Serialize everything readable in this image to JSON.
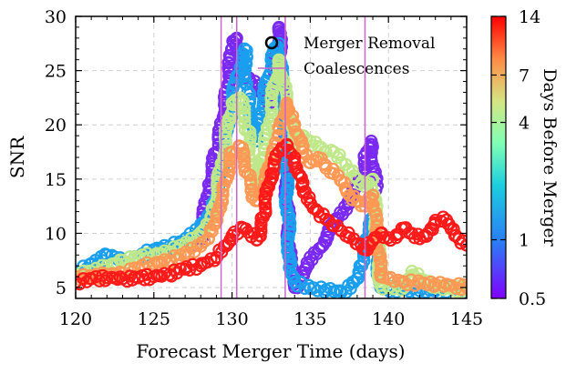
{
  "chart_data": {
    "type": "scatter",
    "xlabel": "Forecast Merger Time (days)",
    "ylabel": "SNR",
    "xlim": [
      120,
      145
    ],
    "ylim": [
      4,
      30
    ],
    "xticks": [
      "120",
      "125",
      "130",
      "135",
      "140",
      "145"
    ],
    "yticks": [
      "5",
      "10",
      "15",
      "20",
      "25",
      "30"
    ],
    "grid": true,
    "legend": {
      "placement": "top-right",
      "entries": [
        {
          "label": "Merger Removal",
          "marker": "open-circle"
        },
        {
          "label": "Coalescences",
          "marker": "vertical-line"
        }
      ]
    },
    "colorbar": {
      "label": "Days Before Merger",
      "colormap": "rainbow",
      "scale": "log",
      "range": [
        0.5,
        14
      ],
      "ticks": [
        "0.5",
        "1",
        "4",
        "7",
        "14"
      ]
    },
    "coalescences": [
      129.3,
      130.3,
      133.4,
      138.5
    ],
    "series": [
      {
        "days_before": 14,
        "color": "#ff1a1a",
        "points": [
          [
            120,
            5.5
          ],
          [
            121,
            5.8
          ],
          [
            122,
            5.9
          ],
          [
            123,
            5.8
          ],
          [
            124,
            5.9
          ],
          [
            125,
            6.0
          ],
          [
            126,
            6.2
          ],
          [
            127,
            6.7
          ],
          [
            128,
            7.0
          ],
          [
            129,
            7.8
          ],
          [
            130,
            9.8
          ],
          [
            130.7,
            10.5
          ],
          [
            131,
            10.1
          ],
          [
            131.6,
            9.4
          ],
          [
            132,
            11.5
          ],
          [
            132.5,
            15.5
          ],
          [
            133,
            17.5
          ],
          [
            133.5,
            18.2
          ],
          [
            134,
            17.0
          ],
          [
            134.5,
            14.5
          ],
          [
            135,
            12.8
          ],
          [
            135.5,
            12.0
          ],
          [
            136,
            11.3
          ],
          [
            136.5,
            10.7
          ],
          [
            137,
            10.2
          ],
          [
            137.5,
            9.6
          ],
          [
            138,
            9.0
          ],
          [
            138.5,
            8.5
          ],
          [
            139,
            9.3
          ],
          [
            139.5,
            10.0
          ],
          [
            140,
            9.6
          ],
          [
            140.5,
            9.6
          ],
          [
            141,
            10.5
          ],
          [
            141.5,
            10.0
          ],
          [
            142,
            9.5
          ],
          [
            142.5,
            10.0
          ],
          [
            143,
            11.2
          ],
          [
            143.5,
            11.5
          ],
          [
            144,
            10.4
          ],
          [
            144.5,
            9.5
          ],
          [
            145,
            8.9
          ]
        ]
      },
      {
        "days_before": 7,
        "color": "#ff9955",
        "points": [
          [
            120,
            6.0
          ],
          [
            121,
            6.0
          ],
          [
            122,
            6.2
          ],
          [
            123,
            6.3
          ],
          [
            124,
            6.8
          ],
          [
            125,
            7.2
          ],
          [
            126,
            7.5
          ],
          [
            127,
            8.0
          ],
          [
            128,
            8.8
          ],
          [
            128.5,
            9.5
          ],
          [
            129,
            11.5
          ],
          [
            129.5,
            14.5
          ],
          [
            130,
            17.5
          ],
          [
            130.5,
            18.0
          ],
          [
            131,
            15.5
          ],
          [
            131.5,
            13.0
          ],
          [
            132,
            14.0
          ],
          [
            132.5,
            16.5
          ],
          [
            133,
            19.0
          ],
          [
            133.5,
            22.0
          ],
          [
            134,
            20.0
          ],
          [
            134.5,
            17.5
          ],
          [
            135,
            16.5
          ],
          [
            135.5,
            17.0
          ],
          [
            136,
            16.0
          ],
          [
            136.5,
            15.5
          ],
          [
            137,
            14.8
          ],
          [
            137.5,
            13.5
          ],
          [
            138,
            13.0
          ],
          [
            138.5,
            12.5
          ],
          [
            139,
            13.5
          ],
          [
            139.5,
            6.0
          ],
          [
            140,
            5.8
          ],
          [
            141,
            5.5
          ],
          [
            142,
            5.4
          ],
          [
            143,
            5.3
          ],
          [
            144,
            5.2
          ],
          [
            145,
            5.0
          ]
        ]
      },
      {
        "days_before": 4,
        "color": "#bfe88a",
        "points": [
          [
            120,
            6.2
          ],
          [
            121,
            6.5
          ],
          [
            122,
            7.0
          ],
          [
            123,
            7.5
          ],
          [
            124,
            7.8
          ],
          [
            125,
            8.0
          ],
          [
            126,
            8.3
          ],
          [
            127,
            8.9
          ],
          [
            128,
            9.7
          ],
          [
            128.7,
            11.5
          ],
          [
            129.3,
            16.0
          ],
          [
            130,
            22.0
          ],
          [
            130.5,
            22.5
          ],
          [
            131,
            19.5
          ],
          [
            131.5,
            14.0
          ],
          [
            132,
            17.0
          ],
          [
            132.5,
            21.5
          ],
          [
            133,
            26.0
          ],
          [
            133.5,
            22.0
          ],
          [
            134,
            18.0
          ],
          [
            134.5,
            19.0
          ],
          [
            135,
            18.5
          ],
          [
            135.5,
            18.0
          ],
          [
            136,
            17.5
          ],
          [
            136.5,
            17.5
          ],
          [
            137,
            16.5
          ],
          [
            137.5,
            15.8
          ],
          [
            138,
            15.0
          ],
          [
            138.5,
            14.3
          ],
          [
            139,
            15.0
          ],
          [
            139.5,
            5.2
          ],
          [
            140,
            5.0
          ],
          [
            141,
            5.0
          ],
          [
            141.5,
            6.5
          ],
          [
            142,
            5.8
          ],
          [
            143,
            5.0
          ],
          [
            144,
            4.9
          ],
          [
            145,
            4.8
          ]
        ]
      },
      {
        "days_before": 1,
        "color": "#1a9fef",
        "points": [
          [
            120,
            6.5
          ],
          [
            121,
            7.2
          ],
          [
            122,
            8.0
          ],
          [
            123,
            7.5
          ],
          [
            124,
            7.8
          ],
          [
            125,
            8.5
          ],
          [
            126,
            8.8
          ],
          [
            127,
            9.2
          ],
          [
            128,
            10.5
          ],
          [
            128.7,
            12.0
          ],
          [
            129.3,
            15.5
          ],
          [
            129.8,
            20.0
          ],
          [
            130.3,
            24.5
          ],
          [
            130.8,
            27.0
          ],
          [
            131,
            23.0
          ],
          [
            131.5,
            18.5
          ],
          [
            132,
            22.0
          ],
          [
            132.5,
            26.0
          ],
          [
            133,
            27.5
          ],
          [
            133.3,
            21.0
          ],
          [
            133.7,
            7.0
          ],
          [
            134,
            5.5
          ],
          [
            135,
            4.9
          ],
          [
            136,
            4.8
          ],
          [
            137,
            4.6
          ],
          [
            137.8,
            5.5
          ],
          [
            138.3,
            7.0
          ],
          [
            138.7,
            9.5
          ],
          [
            139,
            11.5
          ],
          [
            139.5,
            5.0
          ],
          [
            140,
            4.9
          ],
          [
            141,
            4.8
          ],
          [
            142,
            4.7
          ],
          [
            143,
            4.7
          ],
          [
            144,
            4.9
          ],
          [
            145,
            4.8
          ]
        ]
      },
      {
        "days_before": 0.5,
        "color": "#7a2af0",
        "points": [
          [
            127.5,
            9.0
          ],
          [
            128,
            9.4
          ],
          [
            128.5,
            14.5
          ],
          [
            129,
            17.5
          ],
          [
            129.5,
            21.0
          ],
          [
            129.8,
            24.5
          ],
          [
            130,
            27.0
          ],
          [
            130.3,
            28.0
          ],
          [
            130.6,
            25.0
          ],
          [
            132.5,
            22.0
          ],
          [
            133,
            29.0
          ],
          [
            133.7,
            7.5
          ],
          [
            134,
            5.0
          ],
          [
            138.3,
            15.0
          ],
          [
            138.6,
            17.5
          ],
          [
            138.9,
            18.5
          ],
          [
            139.2,
            14.0
          ]
        ]
      }
    ]
  }
}
